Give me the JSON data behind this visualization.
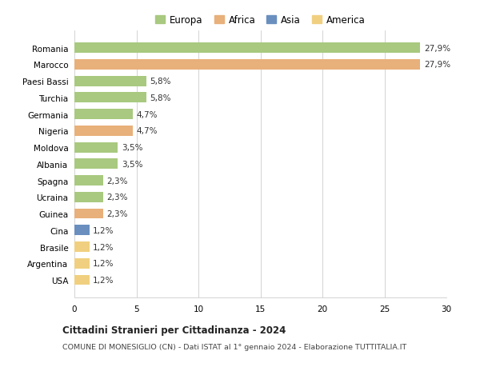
{
  "categories": [
    "Romania",
    "Marocco",
    "Paesi Bassi",
    "Turchia",
    "Germania",
    "Nigeria",
    "Moldova",
    "Albania",
    "Spagna",
    "Ucraina",
    "Guinea",
    "Cina",
    "Brasile",
    "Argentina",
    "USA"
  ],
  "values": [
    27.9,
    27.9,
    5.8,
    5.8,
    4.7,
    4.7,
    3.5,
    3.5,
    2.3,
    2.3,
    2.3,
    1.2,
    1.2,
    1.2,
    1.2
  ],
  "labels": [
    "27,9%",
    "27,9%",
    "5,8%",
    "5,8%",
    "4,7%",
    "4,7%",
    "3,5%",
    "3,5%",
    "2,3%",
    "2,3%",
    "2,3%",
    "1,2%",
    "1,2%",
    "1,2%",
    "1,2%"
  ],
  "colors": [
    "#a8c97f",
    "#e8b07a",
    "#a8c97f",
    "#a8c97f",
    "#a8c97f",
    "#e8b07a",
    "#a8c97f",
    "#a8c97f",
    "#a8c97f",
    "#a8c97f",
    "#e8b07a",
    "#6a8fbf",
    "#f0d080",
    "#f0d080",
    "#f0d080"
  ],
  "continent_colors": {
    "Europa": "#a8c97f",
    "Africa": "#e8b07a",
    "Asia": "#6a8fbf",
    "America": "#f0d080"
  },
  "title": "Cittadini Stranieri per Cittadinanza - 2024",
  "subtitle": "COMUNE DI MONESIGLIO (CN) - Dati ISTAT al 1° gennaio 2024 - Elaborazione TUTTITALIA.IT",
  "xlim": [
    0,
    30
  ],
  "xticks": [
    0,
    5,
    10,
    15,
    20,
    25,
    30
  ],
  "bg_color": "#ffffff",
  "bar_height": 0.62
}
